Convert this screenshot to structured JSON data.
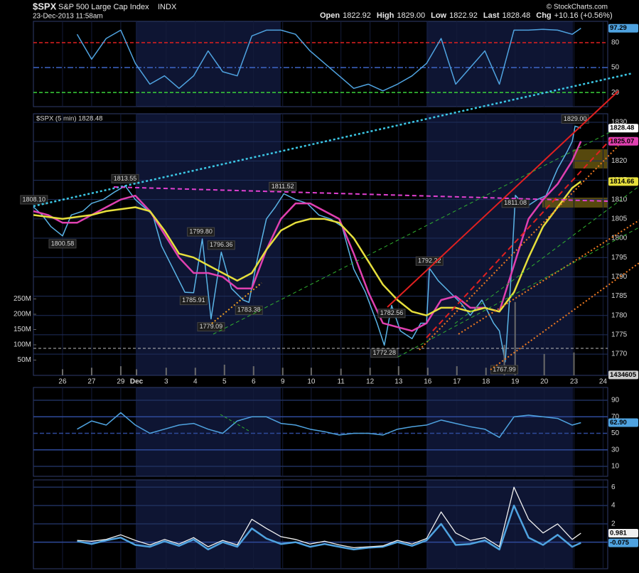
{
  "header": {
    "symbol": "$SPX",
    "name": "S&P 500 Large Cap Index",
    "exchange": "INDX",
    "date": "23-Dec-2013 11:58am",
    "quote": [
      {
        "label": "Open",
        "value": "1822.92"
      },
      {
        "label": "High",
        "value": "1829.00"
      },
      {
        "label": "Low",
        "value": "1822.92"
      },
      {
        "label": "Last",
        "value": "1828.48"
      },
      {
        "label": "Chg",
        "value": "+10.16 (+0.56%)"
      }
    ],
    "credit": "© StockCharts.com"
  },
  "chart_data": [
    {
      "type": "line",
      "ylim": [
        3,
        105.6
      ],
      "yticks": [
        20,
        50,
        80
      ],
      "tick_colors": [
        "#3ad13a",
        "#3e66c8",
        "#e02020"
      ],
      "tick_dash": [
        "5,3",
        "8,3,2,3",
        "5,3"
      ],
      "x": [
        0,
        0.5,
        1,
        1.5,
        2,
        2.5,
        3,
        3.5,
        4,
        4.5,
        5,
        5.5,
        6,
        6.5,
        7,
        7.5,
        8,
        8.5,
        9,
        9.5,
        10,
        10.5,
        11,
        11.5,
        12,
        12.5,
        13,
        13.5,
        14,
        14.5,
        15,
        15.5,
        16,
        16.5,
        17,
        17.5,
        17.8
      ],
      "series": [
        {
          "color": "#4fa3e0",
          "values": [
            null,
            90,
            60,
            85,
            95,
            55,
            30,
            40,
            25,
            40,
            70,
            45,
            40,
            88,
            95,
            95,
            90,
            70,
            55,
            40,
            25,
            30,
            22,
            30,
            40,
            55,
            85,
            30,
            50,
            70,
            30,
            95,
            95,
            96,
            95,
            90,
            97.29
          ]
        }
      ],
      "last_labels": [
        {
          "value": 97.29,
          "color": "#4fa3e0"
        }
      ]
    },
    {
      "type": "line",
      "legend": "$SPX (5 min) 1828.48",
      "ylim": [
        1764.5,
        1832.2
      ],
      "yticks": [
        1770,
        1775,
        1780,
        1785,
        1790,
        1795,
        1800,
        1805,
        1810,
        1815,
        1820,
        1825,
        1830
      ],
      "xlim": [
        -1,
        18.72
      ],
      "xticks": [
        {
          "value": 0,
          "label": "26"
        },
        {
          "value": 1,
          "label": "27"
        },
        {
          "value": 2,
          "label": "29"
        },
        {
          "value": 2.54,
          "label": "Dec"
        },
        {
          "value": 3.56,
          "label": "3"
        },
        {
          "value": 4.56,
          "label": "4"
        },
        {
          "value": 5.56,
          "label": "5"
        },
        {
          "value": 6.56,
          "label": "6"
        },
        {
          "value": 7.56,
          "label": "9"
        },
        {
          "value": 8.54,
          "label": "10"
        },
        {
          "value": 9.56,
          "label": "11"
        },
        {
          "value": 10.56,
          "label": "12"
        },
        {
          "value": 11.54,
          "label": "13"
        },
        {
          "value": 12.54,
          "label": "16"
        },
        {
          "value": 13.54,
          "label": "17"
        },
        {
          "value": 14.54,
          "label": "18"
        },
        {
          "value": 15.54,
          "label": "19"
        },
        {
          "value": 16.54,
          "label": "20"
        },
        {
          "value": 17.56,
          "label": "23"
        },
        {
          "value": 18.56,
          "label": "24"
        }
      ],
      "y2lim": [
        0,
        856000000
      ],
      "y2ticks": [
        {
          "value": 50000000,
          "label": "50M"
        },
        {
          "value": 100000000,
          "label": "100M"
        },
        {
          "value": 150000000,
          "label": "150M"
        },
        {
          "value": 200000000,
          "label": "200M"
        },
        {
          "value": 250000000,
          "label": "250M"
        }
      ],
      "series": [
        {
          "color": "#5ab4e6",
          "width": 1.5,
          "x": [
            -1,
            -0.7,
            -0.4,
            0,
            0.3,
            0.7,
            1,
            1.4,
            1.8,
            2.15,
            2.5,
            2.8,
            3.1,
            3.4,
            3.8,
            4.2,
            4.5,
            4.8,
            5.1,
            5.45,
            5.8,
            6.2,
            6.4,
            6.7,
            7,
            7.3,
            7.6,
            8,
            8.4,
            8.8,
            9.2,
            9.6,
            10,
            10.4,
            10.8,
            11.05,
            11.3,
            11.6,
            12,
            12.3,
            12.5,
            12.6,
            12.9,
            13.3,
            13.7,
            14,
            14.4,
            14.8,
            15,
            15.2,
            15.4,
            15.55,
            15.9,
            16.3,
            16.6,
            17,
            17.3,
            17.5,
            17.6,
            17.8
          ],
          "values": [
            1808.1,
            1806,
            1803,
            1800.6,
            1806,
            1807,
            1809,
            1810,
            1812,
            1813.55,
            1810,
            1808,
            1806,
            1798,
            1792,
            1786,
            1785.9,
            1799.8,
            1779.1,
            1796.4,
            1787,
            1784,
            1783.4,
            1795,
            1805,
            1808,
            1811.5,
            1810,
            1809,
            1806,
            1805,
            1803,
            1792,
            1786,
            1778,
            1772.3,
            1782.6,
            1776,
            1774,
            1778,
            1778,
            1792.2,
            1789,
            1786,
            1783,
            1780,
            1784,
            1778,
            1776,
            1768,
            1790,
            1811.1,
            1808,
            1810,
            1811,
            1818,
            1822,
            1825,
            1829,
            1828.48
          ]
        },
        {
          "color": "#e040b0",
          "width": 2.5,
          "x": [
            -1,
            -0.5,
            0,
            0.5,
            1,
            1.5,
            2,
            2.5,
            3,
            3.5,
            4,
            4.5,
            5,
            5.5,
            6,
            6.5,
            7,
            7.5,
            8,
            8.5,
            9,
            9.5,
            10,
            10.5,
            11,
            11.5,
            12,
            12.5,
            13,
            13.5,
            14,
            14.5,
            15,
            15.5,
            16,
            16.5,
            17,
            17.5,
            17.8
          ],
          "values": [
            1807,
            1806,
            1804,
            1804,
            1806,
            1808,
            1810,
            1811,
            1807,
            1801,
            1795,
            1791,
            1791,
            1790,
            1787,
            1787,
            1797,
            1805,
            1809,
            1809,
            1807,
            1805,
            1796,
            1786,
            1778,
            1777,
            1776,
            1778,
            1784,
            1785,
            1782,
            1782,
            1781,
            1793,
            1805,
            1810,
            1814,
            1820,
            1825.07
          ]
        },
        {
          "color": "#e6df3c",
          "width": 2.5,
          "x": [
            -1,
            0,
            1,
            1.5,
            2,
            2.5,
            3,
            3.5,
            4,
            4.5,
            5,
            5.5,
            6,
            6.5,
            7,
            7.5,
            8,
            8.5,
            9,
            9.5,
            10,
            10.5,
            11,
            11.5,
            12,
            12.5,
            13,
            13.5,
            14,
            14.5,
            15,
            15.5,
            16,
            16.5,
            17,
            17.5,
            17.8
          ],
          "values": [
            1806,
            1805,
            1806,
            1807,
            1807.5,
            1808,
            1807,
            1802,
            1796,
            1795,
            1793,
            1791,
            1789,
            1791,
            1797,
            1802,
            1804,
            1805,
            1805,
            1804,
            1800,
            1794,
            1788,
            1784,
            1781,
            1780,
            1782,
            1782,
            1781,
            1782,
            1781,
            1786,
            1795,
            1803,
            1808,
            1813,
            1814.66
          ]
        },
        {
          "type": "bar",
          "axis": "y2",
          "color": "#6a6a6a",
          "x": [
            0,
            1,
            2,
            2.54,
            3.56,
            4.56,
            5.56,
            6.56,
            7.56,
            8.54,
            9.56,
            10.56,
            11.54,
            12.54,
            13.54,
            14.54,
            15.17,
            15.54,
            16.54,
            17.56
          ],
          "values": [
            20000000,
            25000000,
            30000000,
            20000000,
            25000000,
            25000000,
            35000000,
            30000000,
            25000000,
            25000000,
            22000000,
            25000000,
            30000000,
            25000000,
            30000000,
            25000000,
            100000000,
            240000000,
            70000000,
            75000000
          ]
        }
      ],
      "annotations": [
        {
          "x": -0.98,
          "value": 1808.1,
          "label": "1808.10"
        },
        {
          "x": 0,
          "value": 1800.58
        },
        {
          "x": 2.15,
          "value": 1813.55
        },
        {
          "x": 4.5,
          "value": 1785.91
        },
        {
          "x": 4.75,
          "value": 1799.8,
          "label": "1799.80"
        },
        {
          "x": 5.1,
          "value": 1779.09
        },
        {
          "x": 5.45,
          "value": 1796.36
        },
        {
          "x": 6.4,
          "value": 1783.38
        },
        {
          "x": 7.56,
          "value": 1811.52
        },
        {
          "x": 11.05,
          "value": 1772.28
        },
        {
          "x": 11.3,
          "value": 1782.56
        },
        {
          "x": 12.6,
          "value": 1792.22
        },
        {
          "x": 15.17,
          "value": 1767.99
        },
        {
          "x": 15.55,
          "value": 1811.08
        },
        {
          "x": 17.6,
          "value": 1829,
          "label": "1829.00"
        }
      ],
      "last_labels": [
        {
          "value": 1828.48,
          "color": "#ffffff"
        },
        {
          "value": 1825.07,
          "color": "#e040b0"
        },
        {
          "value": 1814.66,
          "color": "#e6df3c"
        },
        {
          "value": 1434605,
          "axis": "y2",
          "color": "#cccccc"
        }
      ]
    },
    {
      "type": "line",
      "ylim": [
        -2,
        105.5
      ],
      "yticks": [
        10,
        30,
        50,
        70,
        90
      ],
      "tick_colors": [
        "#1f2f5c",
        "#2e4a9a",
        "#2e4a9a",
        "#2e4a9a",
        "#1f2f5c"
      ],
      "tick_dash": [
        "",
        "",
        "6,3",
        "",
        ""
      ],
      "x": [
        0,
        0.5,
        1,
        1.5,
        2,
        2.5,
        3,
        3.5,
        4,
        4.5,
        5,
        5.5,
        6,
        6.5,
        7,
        7.5,
        8,
        8.5,
        9,
        9.5,
        10,
        10.5,
        11,
        11.5,
        12,
        12.5,
        13,
        13.5,
        14,
        14.5,
        15,
        15.5,
        16,
        16.5,
        17,
        17.5,
        17.8
      ],
      "series": [
        {
          "color": "#4fa3e0",
          "values": [
            null,
            55,
            65,
            60,
            75,
            60,
            50,
            55,
            60,
            62,
            55,
            50,
            65,
            70,
            70,
            62,
            60,
            55,
            52,
            48,
            50,
            50,
            48,
            55,
            58,
            60,
            66,
            62,
            58,
            55,
            45,
            70,
            72,
            70,
            68,
            60,
            62.9
          ]
        }
      ],
      "last_labels": [
        {
          "value": 62.9,
          "label": "62.90",
          "color": "#4fa3e0"
        }
      ]
    },
    {
      "type": "line",
      "ylim": [
        -2.9,
        6.8
      ],
      "yticks": [
        0,
        2,
        4,
        6
      ],
      "tick_colors": [
        "#2e4a9a",
        "#1f2f5c",
        "#1f2f5c",
        "#1f2f5c"
      ],
      "tick_dash": [
        "",
        "",
        "",
        ""
      ],
      "x": [
        0,
        0.5,
        1,
        1.5,
        2,
        2.5,
        3,
        3.5,
        4,
        4.5,
        5,
        5.5,
        6,
        6.5,
        7,
        7.5,
        8,
        8.5,
        9,
        9.5,
        10,
        10.5,
        11,
        11.5,
        12,
        12.5,
        13,
        13.5,
        14,
        14.5,
        15,
        15.5,
        16,
        16.5,
        17,
        17.5,
        17.8
      ],
      "series": [
        {
          "color": "#4fa3e0",
          "width": 2.5,
          "values": [
            null,
            0.1,
            -0.2,
            0.2,
            0.5,
            -0.3,
            -0.5,
            0.1,
            -0.4,
            0.3,
            -0.8,
            0,
            -0.5,
            1.5,
            0.4,
            -0.2,
            0,
            -0.5,
            -0.2,
            -0.5,
            -0.8,
            -0.6,
            -0.5,
            0,
            -0.4,
            0.2,
            2,
            -0.3,
            -0.2,
            0.2,
            -0.8,
            4,
            0.5,
            -0.3,
            0.8,
            -0.5,
            -0.075
          ]
        },
        {
          "color": "#f0f0f0",
          "width": 1.3,
          "values": [
            null,
            0.2,
            0.1,
            0.3,
            0.8,
            0.2,
            -0.3,
            0.3,
            -0.2,
            0.5,
            -0.5,
            0.2,
            -0.3,
            2.5,
            1.5,
            0.6,
            0.3,
            -0.2,
            0.1,
            -0.3,
            -0.6,
            -0.5,
            -0.4,
            0.2,
            -0.2,
            0.4,
            3.3,
            1,
            0.2,
            0.5,
            -0.5,
            6,
            2.5,
            1,
            2,
            0.3,
            0.981
          ]
        }
      ],
      "last_labels": [
        {
          "value": 0.981,
          "color": "#f0f0f0"
        },
        {
          "value": -0.075,
          "color": "#4fa3e0"
        }
      ]
    }
  ]
}
